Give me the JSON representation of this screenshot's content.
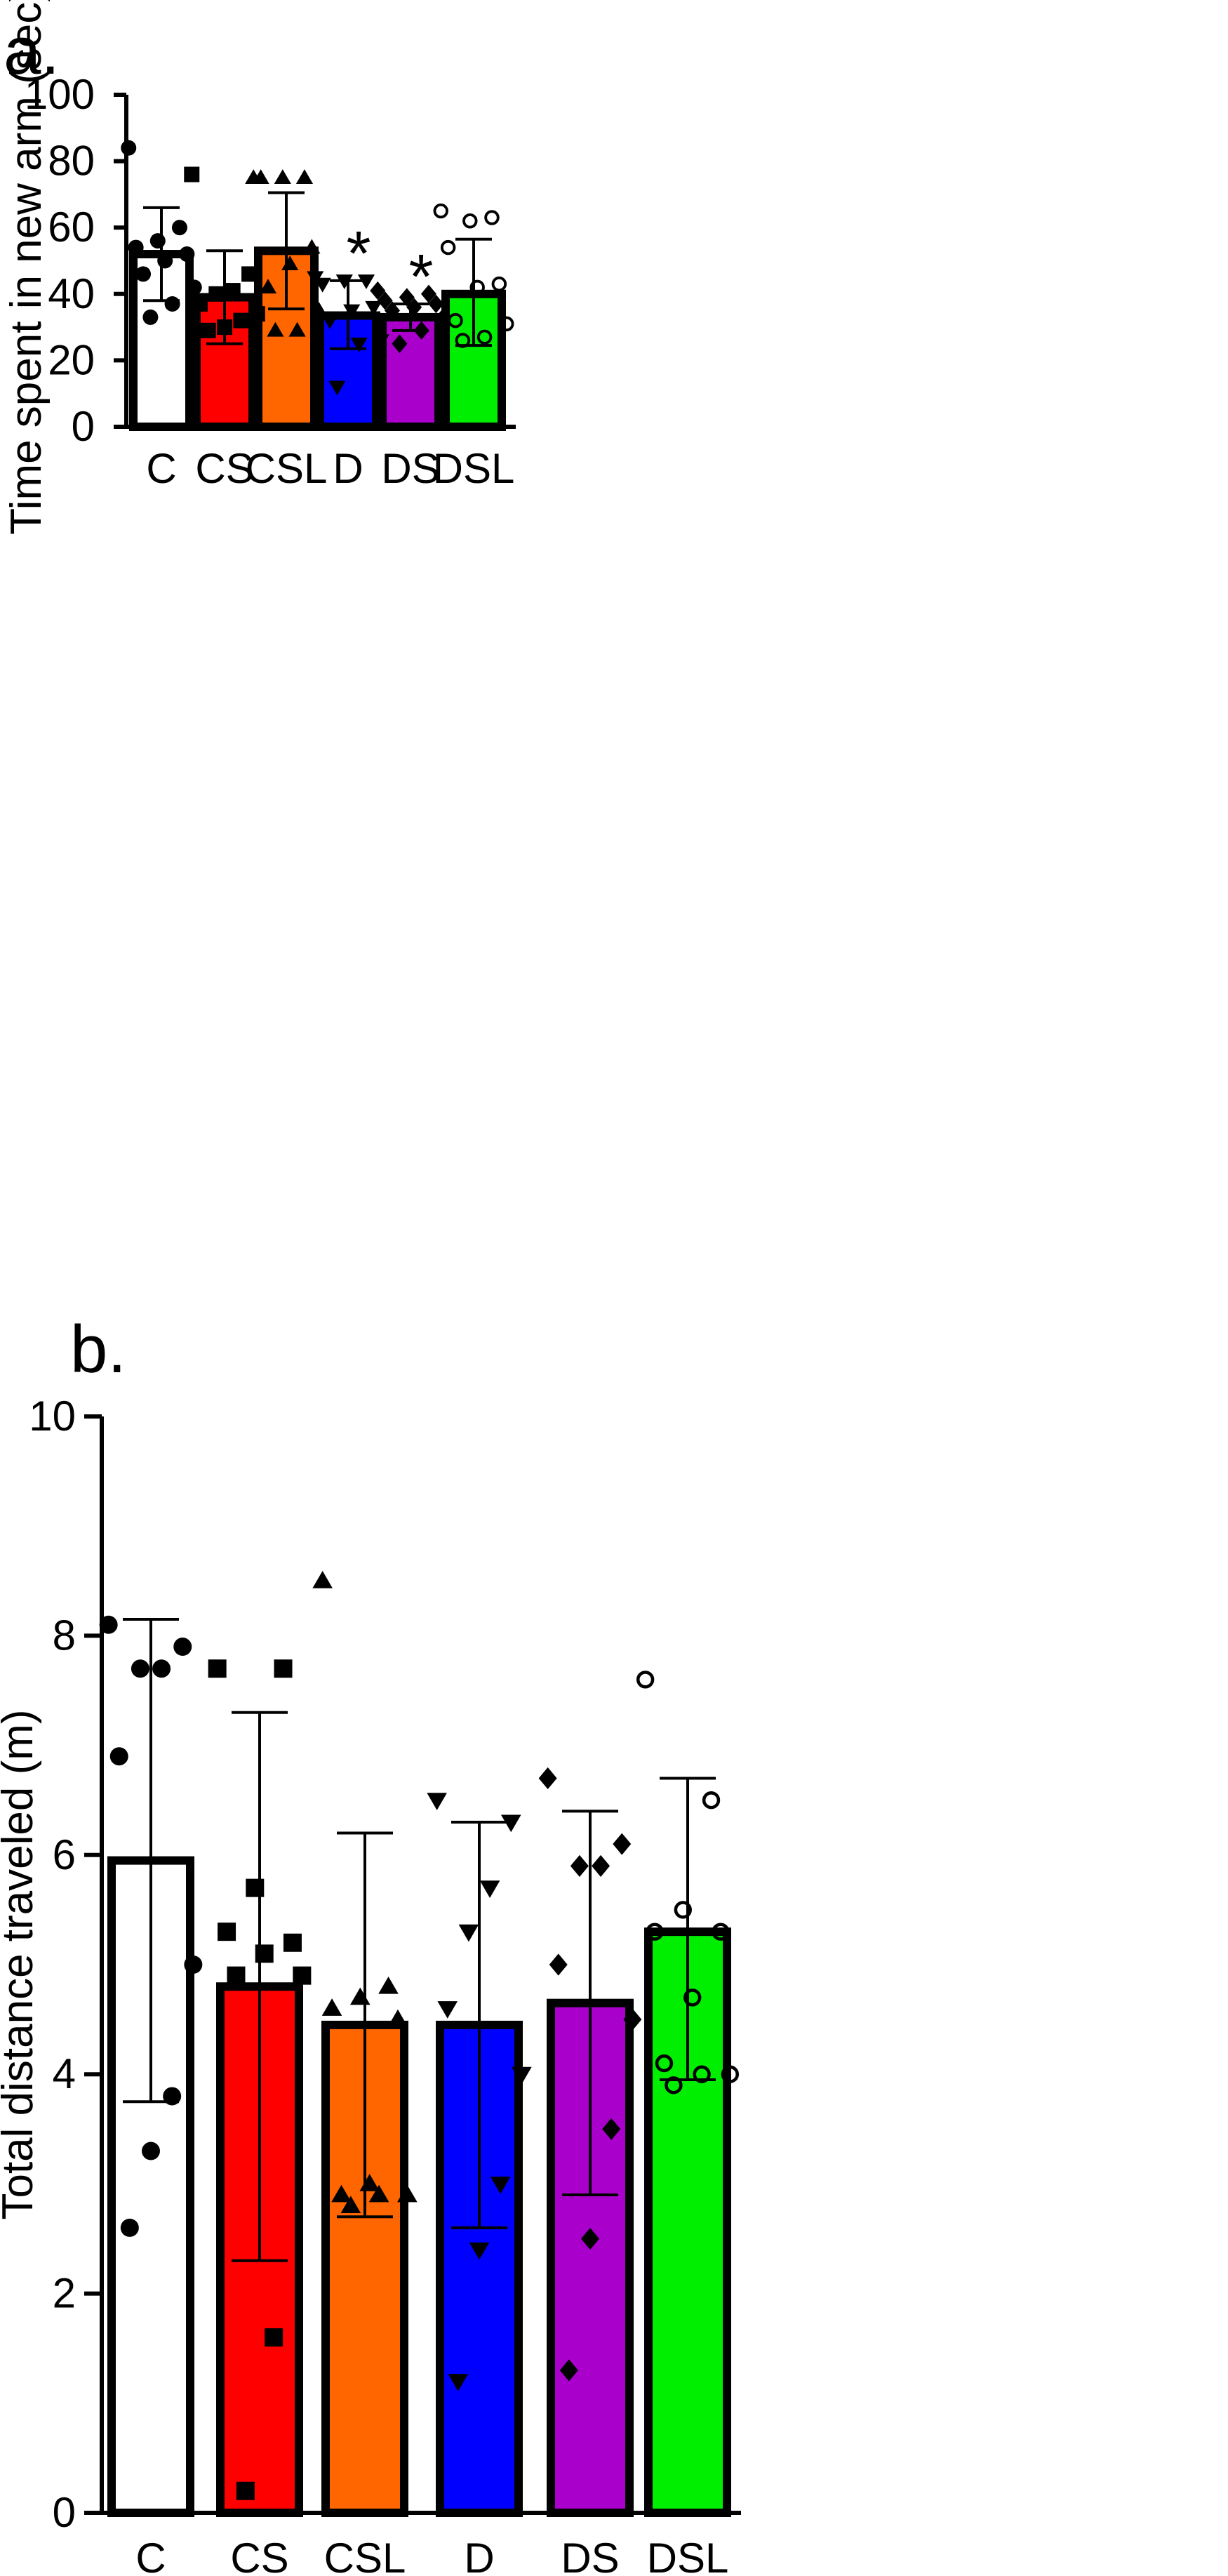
{
  "chart_data": [
    {
      "panel": "a.",
      "type": "bar",
      "ylabel": "Time spent in new arm (sec)",
      "xlabel": "",
      "ylim": [
        0,
        100
      ],
      "yticks": [
        0,
        20,
        40,
        60,
        80,
        100
      ],
      "categories": [
        "C",
        "CS",
        "CSL",
        "D",
        "DS",
        "DSL"
      ],
      "means": [
        52,
        39,
        53,
        33.5,
        33,
        40
      ],
      "sd_upper": [
        66,
        53,
        70.5,
        44,
        37,
        56.5
      ],
      "sd_lower": [
        38,
        25,
        35.5,
        23.5,
        29,
        24.5
      ],
      "colors": [
        "#ffffff",
        "#ff0000",
        "#ff6600",
        "#0000ff",
        "#aa00cc",
        "#00ee00"
      ],
      "markers": [
        "circle",
        "square",
        "triangle-up",
        "triangle-down",
        "diamond",
        "circle-open"
      ],
      "points": [
        [
          84,
          60,
          56,
          54,
          52,
          50,
          46,
          42,
          37,
          33
        ],
        [
          76,
          46,
          41,
          40,
          37,
          34,
          32,
          30,
          29
        ],
        [
          75,
          75,
          75,
          75,
          54,
          49,
          42,
          35,
          29,
          29
        ],
        [
          45,
          44,
          44,
          43,
          36,
          35,
          32,
          26,
          25,
          12
        ],
        [
          41,
          40,
          39,
          38,
          37,
          36,
          35,
          33,
          29,
          25
        ],
        [
          65,
          63,
          62,
          54,
          43,
          42,
          32,
          31,
          27,
          26
        ]
      ],
      "significance": [
        "",
        "",
        "",
        "*",
        "*",
        ""
      ]
    },
    {
      "panel": "b.",
      "type": "bar",
      "ylabel": "Total distance traveled (m)",
      "xlabel": "",
      "ylim": [
        0,
        10
      ],
      "yticks": [
        0,
        2,
        4,
        6,
        8,
        10
      ],
      "categories": [
        "C",
        "CS",
        "CSL",
        "D",
        "DS",
        "DSL"
      ],
      "means": [
        5.95,
        4.8,
        4.45,
        4.45,
        4.65,
        5.3
      ],
      "sd_upper": [
        8.15,
        7.3,
        6.2,
        6.3,
        6.4,
        6.7
      ],
      "sd_lower": [
        3.75,
        2.3,
        2.7,
        2.6,
        2.9,
        3.95
      ],
      "colors": [
        "#ffffff",
        "#ff0000",
        "#ff6600",
        "#0000ff",
        "#aa00cc",
        "#00ee00"
      ],
      "markers": [
        "circle",
        "square",
        "triangle-up",
        "triangle-down",
        "diamond",
        "circle-open"
      ],
      "points": [
        [
          8.1,
          7.9,
          7.7,
          7.7,
          6.9,
          5.0,
          3.8,
          3.3,
          2.6
        ],
        [
          7.7,
          7.7,
          5.7,
          5.3,
          5.2,
          5.1,
          4.9,
          4.9,
          1.6,
          0.2
        ],
        [
          8.5,
          4.8,
          4.7,
          4.6,
          4.5,
          3.0,
          2.9,
          2.9,
          2.9,
          2.8
        ],
        [
          6.5,
          6.3,
          5.7,
          5.3,
          4.6,
          4.0,
          3.0,
          2.4,
          1.2
        ],
        [
          6.7,
          6.1,
          5.9,
          5.9,
          5.0,
          4.5,
          3.5,
          2.5,
          1.3
        ],
        [
          7.6,
          6.5,
          5.5,
          5.3,
          5.3,
          4.7,
          4.1,
          4.0,
          4.0,
          3.9
        ]
      ],
      "significance": [
        "",
        "",
        "",
        "",
        "",
        ""
      ]
    }
  ]
}
